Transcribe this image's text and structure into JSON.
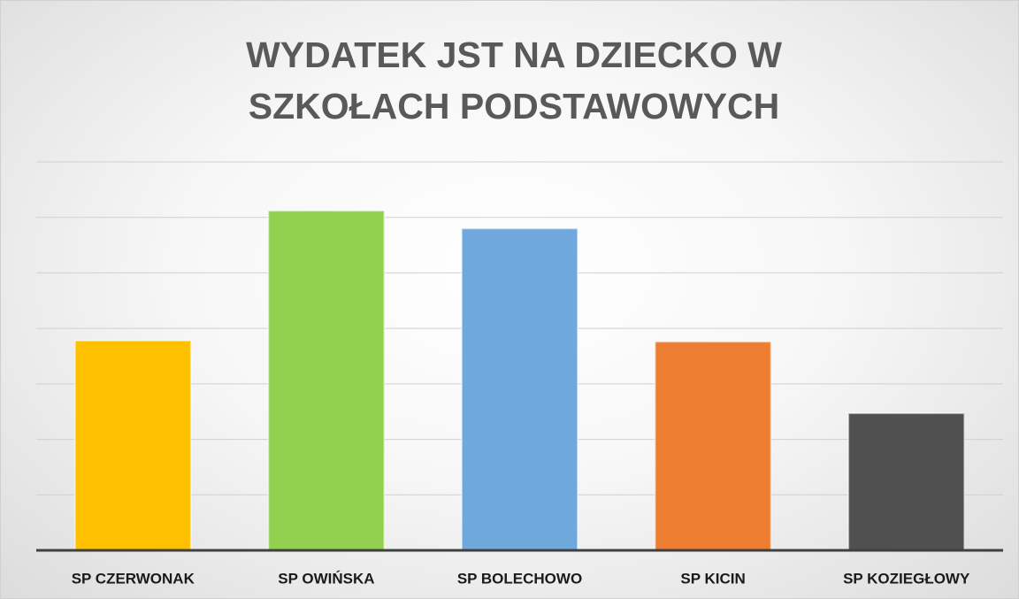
{
  "chart_data": {
    "type": "bar",
    "title": "WYDATEK JST NA DZIECKO W SZKOŁACH PODSTAWOWYCH",
    "categories": [
      "SP CZERWONAK",
      "SP OWIŃSKA",
      "SP BOLECHOWO",
      "SP KICIN",
      "SP KOZIEGŁOWY"
    ],
    "values": [
      3.78,
      6.12,
      5.8,
      3.76,
      2.47
    ],
    "colors": [
      "#ffc000",
      "#92d050",
      "#6fa8dc",
      "#ed7d31",
      "#505050"
    ],
    "ylim": [
      0,
      7
    ],
    "yticks": [
      0,
      1,
      2,
      3,
      4,
      5,
      6,
      7
    ],
    "grid": true
  }
}
